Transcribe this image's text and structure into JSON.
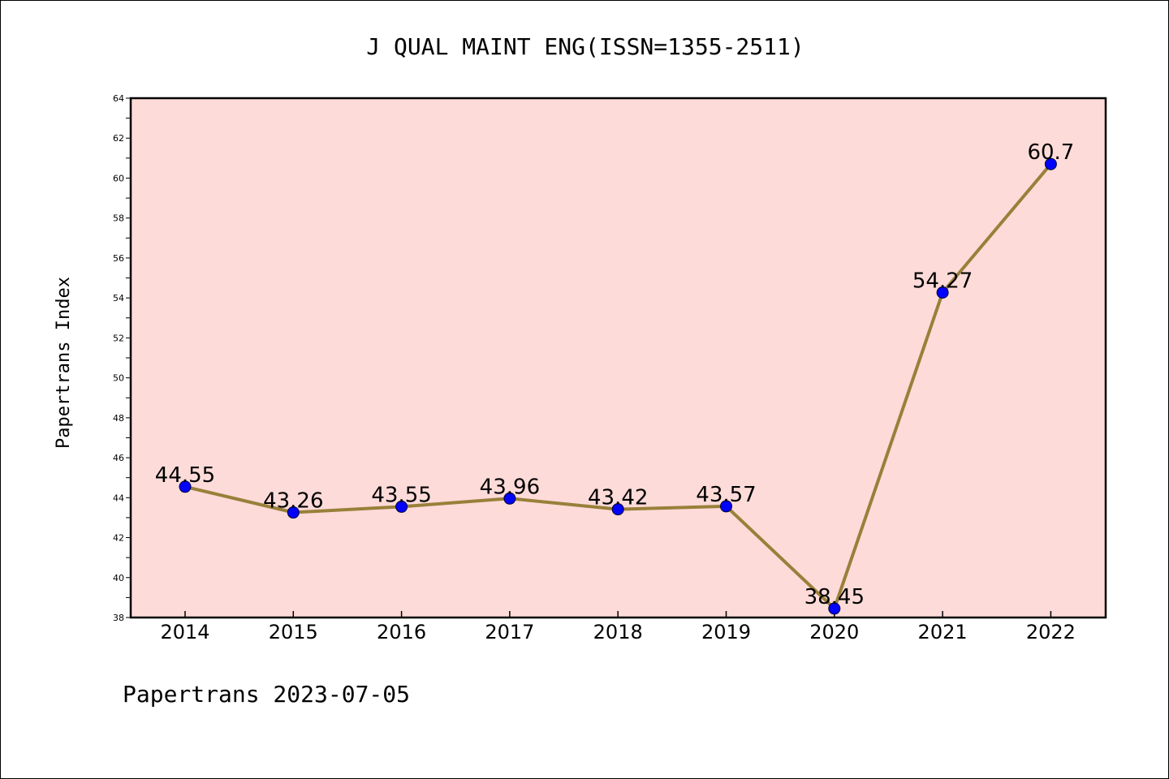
{
  "title": "J QUAL MAINT ENG(ISSN=1355-2511)",
  "footer": "Papertrans 2023-07-05",
  "colors": {
    "plot_background": "#fddbd9",
    "line": "#99803a",
    "marker": "#0000ff",
    "axis": "#000000"
  },
  "chart_data": {
    "type": "line",
    "title": "J QUAL MAINT ENG(ISSN=1355-2511)",
    "xlabel": "",
    "ylabel": "Papertrans Index",
    "categories": [
      "2014",
      "2015",
      "2016",
      "2017",
      "2018",
      "2019",
      "2020",
      "2021",
      "2022"
    ],
    "values": [
      44.55,
      43.26,
      43.55,
      43.96,
      43.42,
      43.57,
      38.45,
      54.27,
      60.7
    ],
    "data_labels": [
      "44.55",
      "43.26",
      "43.55",
      "43.96",
      "43.42",
      "43.57",
      "38.45",
      "54.27",
      "60.7"
    ],
    "ylim": [
      38,
      64
    ],
    "yticks": [
      "38",
      "40",
      "42",
      "44",
      "46",
      "48",
      "50",
      "52",
      "54",
      "56",
      "58",
      "60",
      "62",
      "64"
    ],
    "grid": false,
    "legend": "none"
  }
}
